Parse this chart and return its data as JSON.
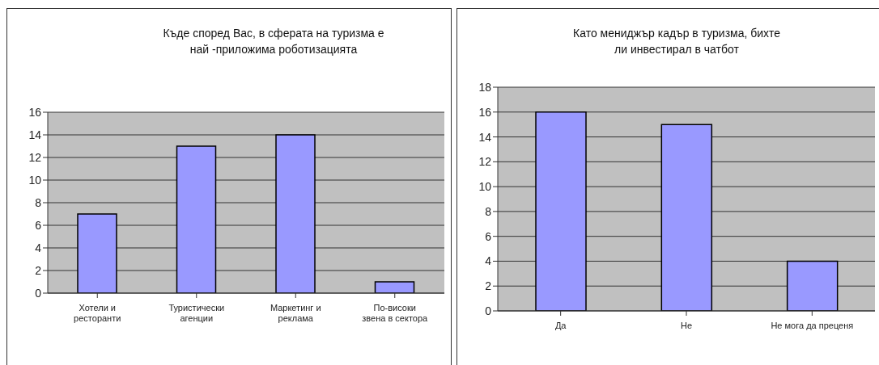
{
  "chart_data": [
    {
      "type": "bar",
      "title": "Къде според Вас, в сферата на туризма е\nнай -приложима роботизацията",
      "categories": [
        "Хотели  и\nресторанти",
        "Туристически\nагенции",
        "Маркетинг и\nреклама",
        "По-високи\nзвена в сектора"
      ],
      "values": [
        7,
        13,
        14,
        1
      ],
      "color": "#9999ff",
      "ylim": [
        0,
        16
      ],
      "yticks": [
        0,
        2,
        4,
        6,
        8,
        10,
        12,
        14,
        16
      ],
      "grid": "y",
      "legend": false
    },
    {
      "type": "bar",
      "title": "Като мениджър кадър в туризма, бихте\nли инвестирал в чатбот",
      "categories": [
        "Да",
        "Не",
        "Не мога да преценя"
      ],
      "values": [
        16,
        15,
        4
      ],
      "color": "#9999ff",
      "ylim": [
        0,
        18
      ],
      "yticks": [
        0,
        2,
        4,
        6,
        8,
        10,
        12,
        14,
        16,
        18
      ],
      "grid": "y",
      "legend": false
    }
  ]
}
